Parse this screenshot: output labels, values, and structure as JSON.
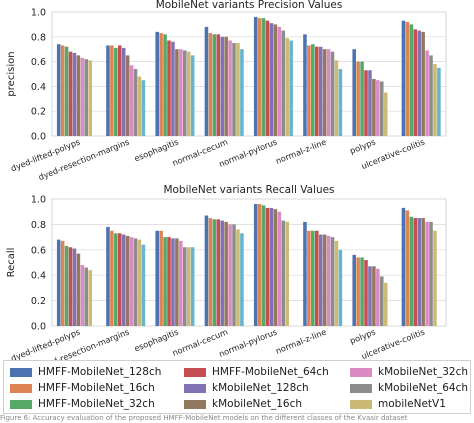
{
  "chart_data": [
    {
      "type": "bar",
      "title": "MobileNet variants Precision Values",
      "ylabel": "precision",
      "xlabel": "",
      "ylim": [
        0,
        1.0
      ],
      "yticks": [
        "0.0",
        "0.2",
        "0.4",
        "0.6",
        "0.8",
        "1.0"
      ],
      "grid": true,
      "categories": [
        "dyed-lifted-polyps",
        "dyed-resection-margins",
        "esophagitis",
        "normal-cecum",
        "normal-pylorus",
        "normal-z-line",
        "polyps",
        "ulcerative-colitis"
      ],
      "series": [
        {
          "name": "HMFF-MobileNet_128ch",
          "values": [
            0.74,
            0.73,
            0.84,
            0.88,
            0.96,
            0.82,
            0.7,
            0.93
          ]
        },
        {
          "name": "HMFF-MobileNet_16ch",
          "values": [
            0.73,
            0.73,
            0.83,
            0.83,
            0.95,
            0.73,
            0.6,
            0.92
          ]
        },
        {
          "name": "HMFF-MobileNet_32ch",
          "values": [
            0.72,
            0.71,
            0.82,
            0.82,
            0.95,
            0.74,
            0.6,
            0.9
          ]
        },
        {
          "name": "HMFF-MobileNet_64ch",
          "values": [
            0.68,
            0.73,
            0.77,
            0.82,
            0.93,
            0.72,
            0.53,
            0.86
          ]
        },
        {
          "name": "kMobileNet_128ch",
          "values": [
            0.67,
            0.71,
            0.76,
            0.8,
            0.91,
            0.72,
            0.53,
            0.85
          ]
        },
        {
          "name": "kMobileNet_16ch",
          "values": [
            0.65,
            0.65,
            0.7,
            0.8,
            0.9,
            0.7,
            0.46,
            0.84
          ]
        },
        {
          "name": "kMobileNet_32ch",
          "values": [
            0.63,
            0.57,
            0.7,
            0.77,
            0.88,
            0.7,
            0.45,
            0.69
          ]
        },
        {
          "name": "kMobileNet_64ch",
          "values": [
            0.62,
            0.54,
            0.69,
            0.75,
            0.85,
            0.68,
            0.44,
            0.65
          ]
        },
        {
          "name": "mobileNetV1",
          "values": [
            0.61,
            0.48,
            0.68,
            0.75,
            0.79,
            0.61,
            0.35,
            0.58
          ]
        },
        {
          "name": "",
          "values": [
            0.0,
            0.45,
            0.65,
            0.7,
            0.77,
            0.54,
            0.0,
            0.55
          ]
        }
      ]
    },
    {
      "type": "bar",
      "title": "MobileNet variants Recall Values",
      "ylabel": "Recall",
      "xlabel": "",
      "ylim": [
        0,
        1.0
      ],
      "yticks": [
        "0.0",
        "0.2",
        "0.4",
        "0.6",
        "0.8",
        "1.0"
      ],
      "grid": true,
      "categories": [
        "dyed-lifted-polyps",
        "dyed-resection-margins",
        "esophagitis",
        "normal-cecum",
        "normal-pylorus",
        "normal-z-line",
        "polyps",
        "ulcerative-colitis"
      ],
      "series": [
        {
          "name": "HMFF-MobileNet_128ch",
          "values": [
            0.68,
            0.78,
            0.75,
            0.87,
            0.96,
            0.82,
            0.56,
            0.93
          ]
        },
        {
          "name": "HMFF-MobileNet_16ch",
          "values": [
            0.67,
            0.75,
            0.75,
            0.85,
            0.96,
            0.75,
            0.54,
            0.91
          ]
        },
        {
          "name": "HMFF-MobileNet_32ch",
          "values": [
            0.63,
            0.73,
            0.7,
            0.84,
            0.95,
            0.75,
            0.54,
            0.86
          ]
        },
        {
          "name": "HMFF-MobileNet_64ch",
          "values": [
            0.62,
            0.73,
            0.7,
            0.84,
            0.93,
            0.75,
            0.52,
            0.85
          ]
        },
        {
          "name": "kMobileNet_128ch",
          "values": [
            0.61,
            0.72,
            0.69,
            0.83,
            0.93,
            0.72,
            0.47,
            0.85
          ]
        },
        {
          "name": "kMobileNet_16ch",
          "values": [
            0.57,
            0.71,
            0.69,
            0.82,
            0.92,
            0.72,
            0.47,
            0.85
          ]
        },
        {
          "name": "kMobileNet_32ch",
          "values": [
            0.48,
            0.7,
            0.67,
            0.8,
            0.9,
            0.71,
            0.45,
            0.82
          ]
        },
        {
          "name": "kMobileNet_64ch",
          "values": [
            0.46,
            0.69,
            0.62,
            0.8,
            0.83,
            0.7,
            0.39,
            0.82
          ]
        },
        {
          "name": "mobileNetV1",
          "values": [
            0.44,
            0.68,
            0.62,
            0.76,
            0.82,
            0.67,
            0.34,
            0.75
          ]
        },
        {
          "name": "",
          "values": [
            0.0,
            0.64,
            0.62,
            0.73,
            0.0,
            0.6,
            0.0,
            0.0
          ]
        }
      ]
    }
  ],
  "legend": [
    {
      "label": "HMFF-MobileNet_128ch",
      "color": "#4c72b0"
    },
    {
      "label": "HMFF-MobileNet_16ch",
      "color": "#dd8452"
    },
    {
      "label": "HMFF-MobileNet_32ch",
      "color": "#55a868"
    },
    {
      "label": "HMFF-MobileNet_64ch",
      "color": "#c44e52"
    },
    {
      "label": "kMobileNet_128ch",
      "color": "#8172b3"
    },
    {
      "label": "kMobileNet_16ch",
      "color": "#937860"
    },
    {
      "label": "kMobileNet_32ch",
      "color": "#da8bc3"
    },
    {
      "label": "kMobileNet_64ch",
      "color": "#8c8c8c"
    },
    {
      "label": "mobileNetV1",
      "color": "#ccb974"
    }
  ],
  "series_colors": [
    "#4c72b0",
    "#dd8452",
    "#55a868",
    "#c44e52",
    "#8172b3",
    "#937860",
    "#da8bc3",
    "#8c8c8c",
    "#ccb974",
    "#64b5cd"
  ],
  "caption": "Figure 6: Accuracy evaluation of the proposed HMFF-MobileNet models on the different classes of the Kvasir dataset"
}
